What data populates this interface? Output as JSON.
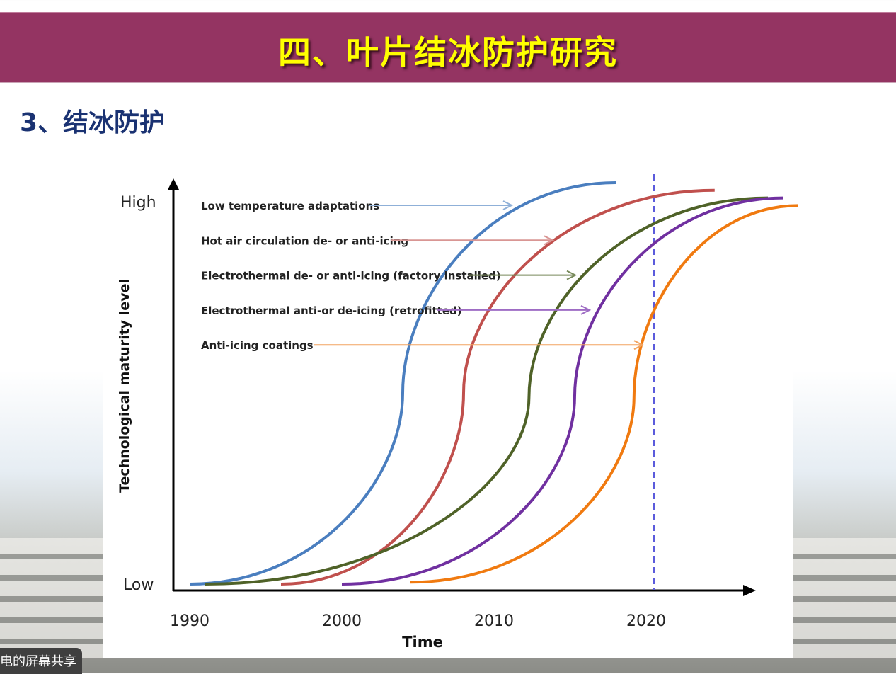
{
  "slide": {
    "title": "四、叶片结冰防护研究",
    "subtitle": "3、结冰防护",
    "header_color": "#943462",
    "title_color": "#ffff00",
    "subtitle_color": "#1a3272"
  },
  "chart_data": {
    "type": "line",
    "xlabel": "Time",
    "ylabel": "Technological maturity level",
    "x_ticks": [
      "1990",
      "2000",
      "2010",
      "2020"
    ],
    "y_ticks": [
      "Low",
      "High"
    ],
    "xlim": [
      1989,
      2031
    ],
    "ylim_labels": {
      "low": 0,
      "high": 1
    },
    "grid": false,
    "legend": "top-left",
    "reference_line": {
      "x": 2020.5,
      "style": "dashed",
      "color": "#5b5bdc"
    },
    "series": [
      {
        "name": "Low temperature adaptations",
        "color": "#4a7ebf",
        "arrow_color": "#8fb0d8",
        "points": [
          [
            1990,
            0.0
          ],
          [
            2004,
            0.5
          ],
          [
            2018,
            1.05
          ]
        ]
      },
      {
        "name": "Hot air circulation de- or anti-icing",
        "color": "#c0504d",
        "arrow_color": "#d99694",
        "points": [
          [
            1996,
            0.0
          ],
          [
            2008,
            0.5
          ],
          [
            2024.5,
            1.03
          ]
        ]
      },
      {
        "name": "Electrothermal de- or anti-icing (factory installed)",
        "color": "#4f6228",
        "arrow_color": "#77895a",
        "points": [
          [
            1991,
            0.0
          ],
          [
            2012.3,
            0.49
          ],
          [
            2028,
            1.01
          ]
        ]
      },
      {
        "name": "Electrothermal anti-or de-icing (retrofitted)",
        "color": "#7030a0",
        "arrow_color": "#9e6cc4",
        "points": [
          [
            2000,
            0.0
          ],
          [
            2015.3,
            0.49
          ],
          [
            2029,
            1.01
          ]
        ]
      },
      {
        "name": "Anti-icing coatings",
        "color": "#f07a10",
        "arrow_color": "#f2a460",
        "points": [
          [
            2004.5,
            0.005
          ],
          [
            2019.2,
            0.49
          ],
          [
            2030,
            0.99
          ]
        ]
      }
    ]
  },
  "share_badge": "电的屏幕共享"
}
